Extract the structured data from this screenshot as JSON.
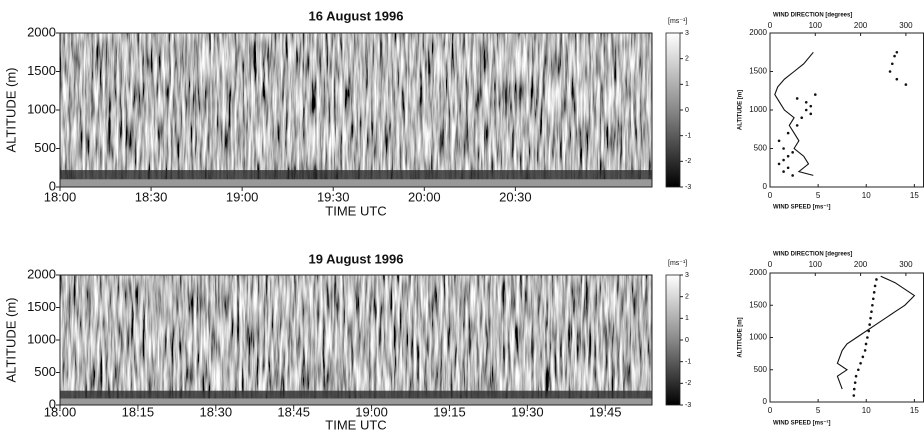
{
  "chart_data": [
    {
      "type": "heatmap",
      "title": "16 August 1996",
      "xlabel": "TIME UTC",
      "ylabel": "ALTITUDE (m)",
      "xlim": [
        "18:00",
        "21:15"
      ],
      "xticks": [
        "18:00",
        "18:30",
        "19:00",
        "19:30",
        "20:00",
        "20:30"
      ],
      "ylim": [
        0,
        2000
      ],
      "yticks": [
        0,
        500,
        1000,
        1500,
        2000
      ],
      "colorbar_label": "[ms⁻¹]",
      "cblim": [
        -3,
        3
      ],
      "cbticks": [
        3,
        2,
        1,
        0,
        -1,
        -2,
        -3
      ]
    },
    {
      "type": "heatmap",
      "title": "19 August 1996",
      "xlabel": "TIME UTC",
      "ylabel": "ALTITUDE (m)",
      "xlim": [
        "18:00",
        "19:54"
      ],
      "xticks": [
        "18:00",
        "18:15",
        "18:30",
        "18:45",
        "19:00",
        "19:15",
        "19:30",
        "19:45"
      ],
      "ylim": [
        0,
        2000
      ],
      "yticks": [
        0,
        500,
        1000,
        1500,
        2000
      ],
      "colorbar_label": "[ms⁻¹]",
      "cblim": [
        -3,
        3
      ],
      "cbticks": [
        3,
        2,
        1,
        0,
        -1,
        -2,
        -3
      ]
    },
    {
      "type": "profile",
      "xlabel": "WIND SPEED [ms⁻¹]",
      "x2label": "WIND DIRECTION [degrees]",
      "ylabel": "ALTITUDE [m]",
      "xlim": [
        0,
        16
      ],
      "xticks": [
        0,
        5,
        10,
        15
      ],
      "x2lim": [
        0,
        340
      ],
      "x2ticks": [
        0,
        100,
        200,
        300
      ],
      "ylim": [
        0,
        2000
      ],
      "yticks": [
        0,
        500,
        1000,
        1500,
        2000
      ],
      "series": [
        {
          "style": "line",
          "axis": "x",
          "values": [
            4.5,
            3.5,
            2.5,
            1.5,
            0.8,
            0.5,
            1,
            1.5,
            2.5,
            2,
            2.5,
            3,
            2.5,
            3.5,
            4,
            3,
            4.5
          ],
          "y": [
            1750,
            1600,
            1500,
            1400,
            1300,
            1200,
            1100,
            1000,
            900,
            800,
            700,
            600,
            500,
            400,
            300,
            200,
            150
          ]
        },
        {
          "style": "dots",
          "axis": "x2",
          "values": [
            280,
            275,
            270,
            265,
            280,
            300,
            100,
            60,
            80,
            90,
            80,
            90,
            70,
            60,
            40,
            20,
            30,
            50,
            40,
            30,
            20,
            40,
            30,
            50
          ],
          "y": [
            1750,
            1700,
            1600,
            1500,
            1400,
            1330,
            1200,
            1150,
            1100,
            1050,
            1000,
            950,
            900,
            800,
            700,
            600,
            500,
            450,
            400,
            350,
            300,
            250,
            200,
            150
          ]
        }
      ]
    },
    {
      "type": "profile",
      "xlabel": "WIND SPEED [ms⁻¹]",
      "x2label": "WIND DIRECTION [degrees]",
      "ylabel": "ALTITUDE [m]",
      "xlim": [
        0,
        16
      ],
      "xticks": [
        0,
        5,
        10,
        15
      ],
      "x2lim": [
        0,
        340
      ],
      "x2ticks": [
        0,
        100,
        200,
        300
      ],
      "ylim": [
        0,
        2000
      ],
      "yticks": [
        0,
        500,
        1000,
        1500,
        2000
      ],
      "series": [
        {
          "style": "line",
          "axis": "x",
          "values": [
            11.5,
            13,
            15,
            14,
            13,
            11,
            9,
            8,
            7.5,
            7,
            8,
            7,
            7.5
          ],
          "y": [
            1950,
            1850,
            1650,
            1500,
            1400,
            1200,
            1000,
            900,
            800,
            600,
            500,
            400,
            200
          ]
        },
        {
          "style": "dots",
          "axis": "x2",
          "values": [
            235,
            232,
            230,
            228,
            226,
            224,
            222,
            220,
            218,
            215,
            212,
            210,
            205,
            200,
            195,
            190,
            188,
            186,
            185
          ],
          "y": [
            1900,
            1800,
            1700,
            1600,
            1500,
            1400,
            1300,
            1200,
            1100,
            1000,
            900,
            800,
            700,
            600,
            500,
            400,
            300,
            200,
            100
          ]
        }
      ]
    }
  ]
}
